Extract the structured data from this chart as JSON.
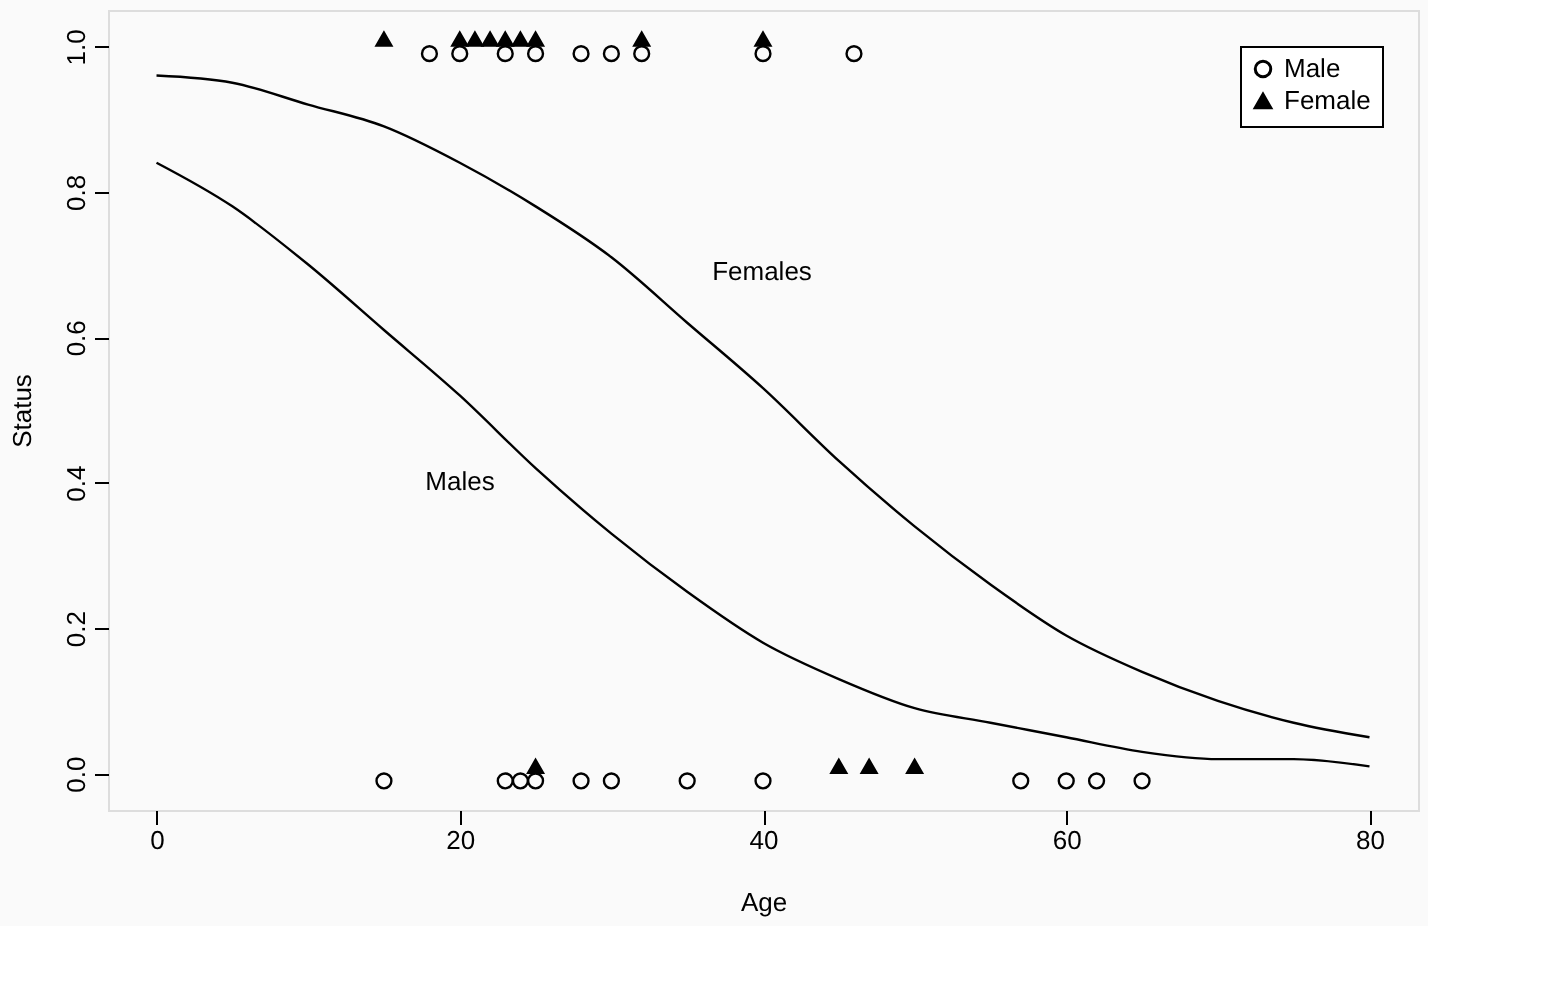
{
  "chart_data": {
    "type": "scatter",
    "xlabel": "Age",
    "ylabel": "Status",
    "xlim": [
      -3.2,
      83.2
    ],
    "ylim": [
      -0.05,
      1.05
    ],
    "xticks": [
      0,
      20,
      40,
      60,
      80
    ],
    "yticks": [
      {
        "value": 0,
        "label": "0.0"
      },
      {
        "value": 0.2,
        "label": "0.2"
      },
      {
        "value": 0.4,
        "label": "0.4"
      },
      {
        "value": 0.6,
        "label": "0.6"
      },
      {
        "value": 0.8,
        "label": "0.8"
      },
      {
        "value": 1,
        "label": "1.0"
      }
    ],
    "grid": false,
    "legend": "top right",
    "series": [
      {
        "name": "Male",
        "marker": "circle",
        "color": "#000000",
        "x": [
          18,
          20,
          23,
          25,
          28,
          30,
          32,
          40,
          46,
          15,
          23,
          24,
          25,
          28,
          30,
          35,
          40,
          57,
          60,
          62,
          65
        ],
        "values": [
          0.99,
          0.99,
          0.99,
          0.99,
          0.99,
          0.99,
          0.99,
          0.99,
          0.99,
          -0.01,
          -0.01,
          -0.01,
          -0.01,
          -0.01,
          -0.01,
          -0.01,
          -0.01,
          -0.01,
          -0.01,
          -0.01,
          -0.01
        ]
      },
      {
        "name": "Female",
        "marker": "triangle",
        "color": "#000000",
        "x": [
          15,
          20,
          21,
          22,
          23,
          24,
          25,
          32,
          40,
          25,
          45,
          47,
          50
        ],
        "values": [
          1.01,
          1.01,
          1.01,
          1.01,
          1.01,
          1.01,
          1.01,
          1.01,
          1.01,
          0.01,
          0.01,
          0.01,
          0.01
        ]
      },
      {
        "type": "line",
        "color": "#000000",
        "x": [
          0,
          5,
          10,
          15,
          20,
          25,
          30,
          35,
          40,
          45,
          50,
          55,
          60,
          65,
          70,
          75,
          80
        ],
        "values": [
          0.84,
          0.78,
          0.7,
          0.61,
          0.52,
          0.42,
          0.33,
          0.25,
          0.18,
          0.13,
          0.09,
          0.07,
          0.05,
          0.03,
          0.02,
          0.02,
          0.01
        ]
      },
      {
        "type": "line",
        "color": "#000000",
        "x": [
          0,
          5,
          10,
          15,
          20,
          25,
          30,
          35,
          40,
          45,
          50,
          55,
          60,
          65,
          70,
          75,
          80
        ],
        "values": [
          0.96,
          0.95,
          0.92,
          0.89,
          0.84,
          0.78,
          0.71,
          0.62,
          0.53,
          0.43,
          0.34,
          0.26,
          0.19,
          0.14,
          0.1,
          0.07,
          0.05
        ]
      }
    ],
    "annotations": [
      "Females",
      "Males"
    ]
  }
}
